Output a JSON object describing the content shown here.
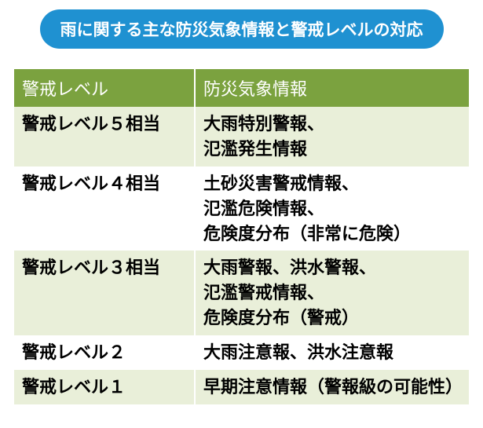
{
  "title": "雨に関する主な防災気象情報と警戒レベルの対応",
  "colors": {
    "title_bg": "#1f91d1",
    "title_text": "#ffffff",
    "header_bg": "#7ba23f",
    "header_text": "#ffffff",
    "row_alt_bg": "#e9efd9",
    "row_plain_bg": "#ffffff",
    "cell_text": "#000000"
  },
  "table": {
    "columns": [
      "警戒レベル",
      "防災気象情報"
    ],
    "rows": [
      {
        "level": "警戒レベル５相当",
        "info": "大雨特別警報、\n氾濫発生情報"
      },
      {
        "level": "警戒レベル４相当",
        "info": "土砂災害警戒情報、\n氾濫危険情報、\n危険度分布（非常に危険）"
      },
      {
        "level": "警戒レベル３相当",
        "info": "大雨警報、洪水警報、\n氾濫警戒情報、\n危険度分布（警戒）"
      },
      {
        "level": "警戒レベル２",
        "info": "大雨注意報、洪水注意報"
      },
      {
        "level": "警戒レベル１",
        "info": "早期注意情報（警報級の可能性）"
      }
    ]
  }
}
